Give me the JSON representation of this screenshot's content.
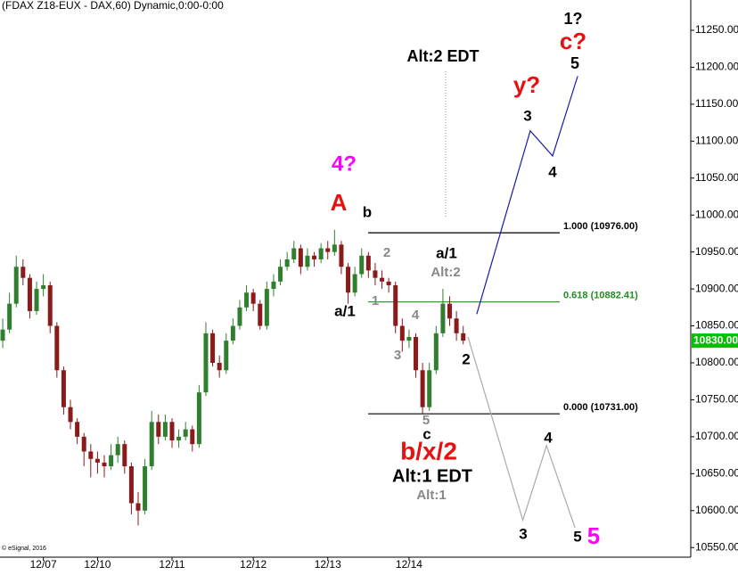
{
  "chart_data": {
    "type": "candlestick",
    "title": "(FDAX Z18-EUX - DAX,60) Dynamic,0:00-0:00",
    "copyright": "© eSignal, 2016",
    "categories": [
      null,
      null,
      null,
      null,
      null,
      null,
      "12/07",
      null,
      null,
      null,
      null,
      null,
      null,
      null,
      "12/10",
      null,
      null,
      null,
      null,
      null,
      null,
      null,
      null,
      null,
      null,
      "12/11",
      null,
      null,
      null,
      null,
      null,
      null,
      null,
      null,
      null,
      null,
      null,
      "12/12",
      null,
      null,
      null,
      null,
      null,
      null,
      null,
      null,
      null,
      null,
      "12/13",
      null,
      null,
      null,
      null,
      null,
      null,
      null,
      null,
      null,
      null,
      null,
      "12/14",
      null,
      null,
      null,
      null,
      null,
      null,
      null,
      null
    ],
    "ohlc": [
      [
        10830,
        10860,
        10820,
        10845
      ],
      [
        10845,
        10895,
        10840,
        10880
      ],
      [
        10880,
        10945,
        10875,
        10930
      ],
      [
        10930,
        10940,
        10905,
        10915
      ],
      [
        10915,
        10920,
        10860,
        10870
      ],
      [
        10870,
        10910,
        10865,
        10900
      ],
      [
        10900,
        10920,
        10890,
        10905
      ],
      [
        10905,
        10910,
        10840,
        10850
      ],
      [
        10850,
        10855,
        10780,
        10790
      ],
      [
        10790,
        10795,
        10730,
        10740
      ],
      [
        10740,
        10750,
        10710,
        10720
      ],
      [
        10720,
        10725,
        10690,
        10700
      ],
      [
        10700,
        10705,
        10660,
        10680
      ],
      [
        10680,
        10690,
        10645,
        10670
      ],
      [
        10670,
        10680,
        10650,
        10665
      ],
      [
        10665,
        10675,
        10645,
        10660
      ],
      [
        10660,
        10690,
        10655,
        10675
      ],
      [
        10675,
        10700,
        10665,
        10690
      ],
      [
        10690,
        10695,
        10650,
        10660
      ],
      [
        10660,
        10665,
        10595,
        10610
      ],
      [
        10610,
        10625,
        10580,
        10600
      ],
      [
        10600,
        10670,
        10595,
        10660
      ],
      [
        10660,
        10735,
        10655,
        10720
      ],
      [
        10720,
        10730,
        10690,
        10700
      ],
      [
        10700,
        10730,
        10695,
        10720
      ],
      [
        10720,
        10725,
        10685,
        10695
      ],
      [
        10695,
        10710,
        10685,
        10700
      ],
      [
        10700,
        10720,
        10695,
        10710
      ],
      [
        10710,
        10715,
        10680,
        10690
      ],
      [
        10690,
        10770,
        10685,
        10760
      ],
      [
        10760,
        10855,
        10755,
        10840
      ],
      [
        10840,
        10845,
        10795,
        10800
      ],
      [
        10800,
        10810,
        10780,
        10790
      ],
      [
        10790,
        10840,
        10785,
        10830
      ],
      [
        10830,
        10860,
        10825,
        10850
      ],
      [
        10850,
        10885,
        10845,
        10875
      ],
      [
        10875,
        10905,
        10870,
        10895
      ],
      [
        10895,
        10900,
        10870,
        10880
      ],
      [
        10880,
        10885,
        10845,
        10850
      ],
      [
        10850,
        10910,
        10845,
        10900
      ],
      [
        10900,
        10920,
        10890,
        10910
      ],
      [
        10910,
        10940,
        10905,
        10930
      ],
      [
        10930,
        10950,
        10925,
        10940
      ],
      [
        10940,
        10965,
        10935,
        10955
      ],
      [
        10955,
        10960,
        10920,
        10930
      ],
      [
        10930,
        10955,
        10925,
        10945
      ],
      [
        10945,
        10950,
        10930,
        10940
      ],
      [
        10940,
        10962,
        10935,
        10955
      ],
      [
        10955,
        10965,
        10940,
        10950
      ],
      [
        10950,
        10980,
        10945,
        10960
      ],
      [
        10960,
        10965,
        10920,
        10930
      ],
      [
        10930,
        10935,
        10880,
        10895
      ],
      [
        10895,
        10930,
        10890,
        10920
      ],
      [
        10920,
        10955,
        10915,
        10945
      ],
      [
        10945,
        10950,
        10915,
        10925
      ],
      [
        10925,
        10935,
        10905,
        10915
      ],
      [
        10915,
        10925,
        10900,
        10910
      ],
      [
        10910,
        10915,
        10895,
        10905
      ],
      [
        10905,
        10910,
        10840,
        10850
      ],
      [
        10850,
        10860,
        10815,
        10830
      ],
      [
        10830,
        10845,
        10820,
        10835
      ],
      [
        10835,
        10840,
        10780,
        10790
      ],
      [
        10790,
        10800,
        10731,
        10740
      ],
      [
        10740,
        10800,
        10735,
        10790
      ],
      [
        10790,
        10850,
        10785,
        10840
      ],
      [
        10840,
        10900,
        10835,
        10880
      ],
      [
        10880,
        10890,
        10850,
        10860
      ],
      [
        10860,
        10870,
        10830,
        10840
      ],
      [
        10840,
        10850,
        10825,
        10830
      ]
    ],
    "up_color": "#2f7f2f",
    "down_color": "#8b1a1a",
    "xlim": [
      -0.4,
      101.6
    ],
    "ylim": [
      10537,
      11291
    ],
    "yticks": [
      {
        "value": 10550,
        "label": "10550.00"
      },
      {
        "value": 10600,
        "label": "10600.00"
      },
      {
        "value": 10650,
        "label": "10650.00"
      },
      {
        "value": 10700,
        "label": "10700.00"
      },
      {
        "value": 10750,
        "label": "10750.00"
      },
      {
        "value": 10800,
        "label": "10800.00"
      },
      {
        "value": 10850,
        "label": "10850.00"
      },
      {
        "value": 10900,
        "label": "10900.00"
      },
      {
        "value": 10950,
        "label": "10950.00"
      },
      {
        "value": 11000,
        "label": "11000.00"
      },
      {
        "value": 11050,
        "label": "11050.00"
      },
      {
        "value": 11100,
        "label": "11100.00"
      },
      {
        "value": 11150,
        "label": "11150.00"
      },
      {
        "value": 11200,
        "label": "11200.00"
      },
      {
        "value": 11250,
        "label": "11250.00"
      }
    ],
    "last_price": {
      "value": 10830,
      "label": "10830.00",
      "color": "#00c000"
    },
    "fib_levels": [
      {
        "value": 10976,
        "label": "1.000 (10976.00)",
        "color": "#000000"
      },
      {
        "value": 10882.41,
        "label": "0.618 (10882.41)",
        "color": "#228b22"
      },
      {
        "value": 10731,
        "label": "0.000 (10731.00)",
        "color": "#000000"
      }
    ],
    "projections": [
      {
        "color": "#1a1aa8",
        "x": [
          70,
          77.9,
          81.2,
          84.9
        ],
        "values": [
          10866,
          11114,
          11080,
          11188
        ]
      },
      {
        "color": "#aaaaaa",
        "x": [
          68.7,
          76.8,
          80.3,
          84.5
        ],
        "values": [
          10835,
          10587,
          10688,
          10577
        ]
      }
    ],
    "annotations": [
      "1?",
      "c?",
      "5",
      "y?",
      "3",
      "4",
      "Alt:2 EDT",
      "4?",
      "A",
      "b",
      "2",
      "a/1",
      "Alt:2",
      "1",
      "a/1",
      "4",
      "3",
      "2",
      "5",
      "c",
      "b/x/2",
      "Alt:1 EDT",
      "Alt:1",
      "4",
      "3",
      "5",
      "5"
    ]
  }
}
